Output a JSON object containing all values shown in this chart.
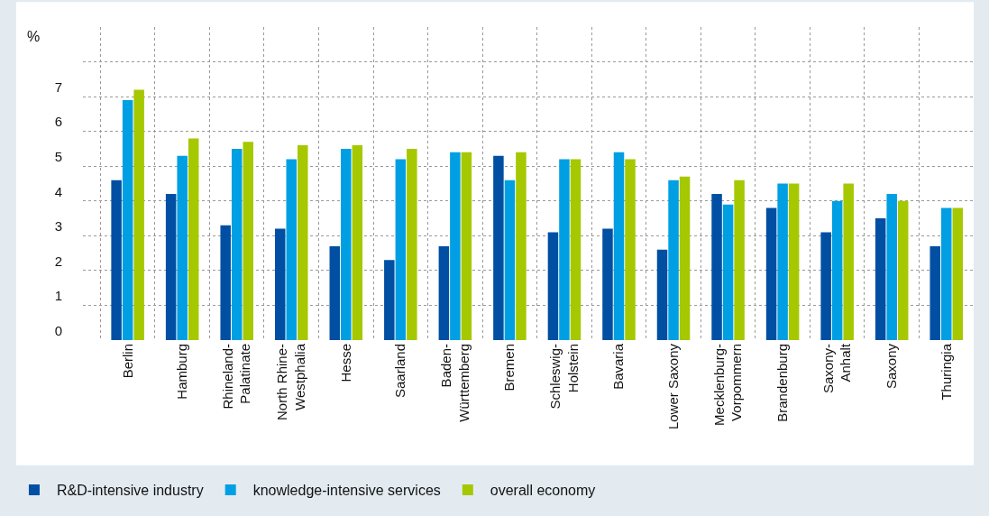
{
  "chart_data": {
    "type": "bar",
    "ylabel": "%",
    "categories": [
      "Berlin",
      "Hamburg",
      "Rhineland-\nPalatinate",
      "North Rhine-\nWestphalia",
      "Hesse",
      "Saarland",
      "Baden-\nWürttemberg",
      "Bremen",
      "Schleswig-\nHolstein",
      "Bavaria",
      "Lower Saxony",
      "Mecklenburg-\nVorpommern",
      "Brandenburg",
      "Saxony-\nAnhalt",
      "Saxony",
      "Thuringia"
    ],
    "series": [
      {
        "name": "R&D-intensive industry",
        "color": "#004fa3",
        "values": [
          4.6,
          4.2,
          3.3,
          3.2,
          2.7,
          2.3,
          2.7,
          5.3,
          3.1,
          3.2,
          2.6,
          4.2,
          3.8,
          3.1,
          3.5,
          2.7
        ]
      },
      {
        "name": "knowledge-intensive services",
        "color": "#009fe3",
        "values": [
          6.9,
          5.3,
          5.5,
          5.2,
          5.5,
          5.2,
          5.4,
          4.6,
          5.2,
          5.4,
          4.6,
          3.9,
          4.5,
          4.0,
          4.2,
          3.8
        ]
      },
      {
        "name": "overall economy",
        "color": "#a5c800",
        "values": [
          7.2,
          5.8,
          5.7,
          5.6,
          5.6,
          5.5,
          5.4,
          5.4,
          5.2,
          5.2,
          4.7,
          4.6,
          4.5,
          4.5,
          4.0,
          3.8
        ]
      }
    ],
    "ylim": [
      0,
      9
    ],
    "yticks": [
      0,
      1,
      2,
      3,
      4,
      5,
      6,
      7,
      {
        "value": 8,
        "label": null
      }
    ],
    "grid": true,
    "legend": "bottom left"
  }
}
